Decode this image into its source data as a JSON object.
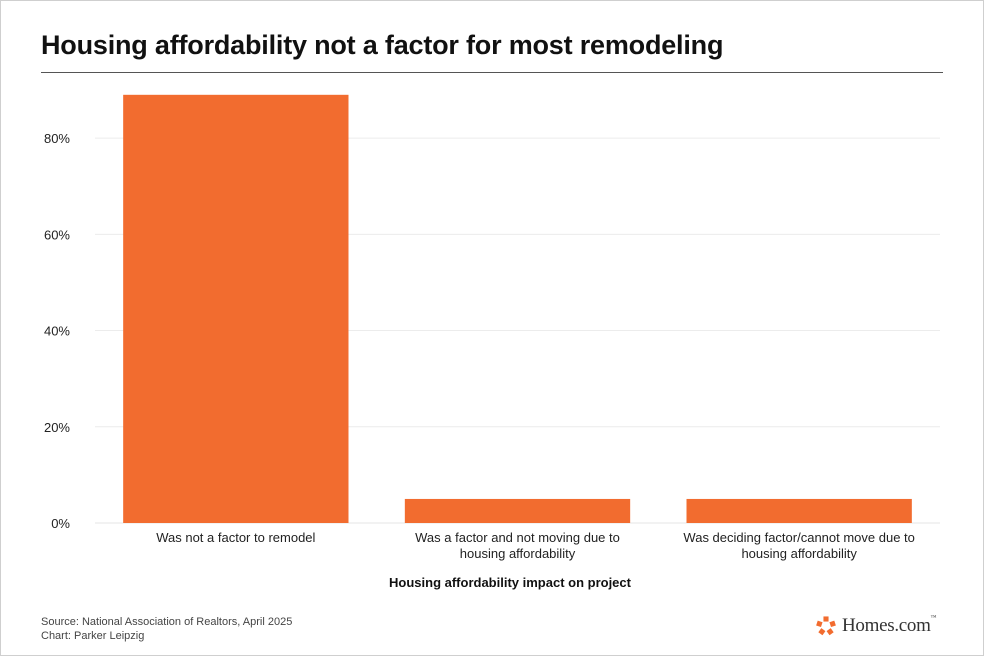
{
  "title": "Housing affordability not a factor for most remodeling",
  "footer": {
    "source": "Source: National Association of Realtors, April 2025",
    "credit": "Chart: Parker Leipzig"
  },
  "logo": {
    "text": "Homes.com",
    "icon": "homes-com-logo-icon",
    "color": "#f26c2f"
  },
  "chart_data": {
    "type": "bar",
    "categories": [
      [
        "Was not a factor to remodel"
      ],
      [
        "Was a factor and not moving due to",
        "housing affordability"
      ],
      [
        "Was deciding factor/cannot move due to",
        "housing affordability"
      ]
    ],
    "values": [
      89,
      5,
      5
    ],
    "xlabel": "Housing affordability impact on project",
    "ylabel": "",
    "ylim": [
      0,
      90
    ],
    "yticks": [
      0,
      20,
      40,
      60,
      80
    ],
    "ytick_labels": [
      "0%",
      "20%",
      "40%",
      "60%",
      "80%"
    ],
    "grid": true,
    "bar_color": "#f26c2f",
    "grid_color": "#ececec"
  }
}
